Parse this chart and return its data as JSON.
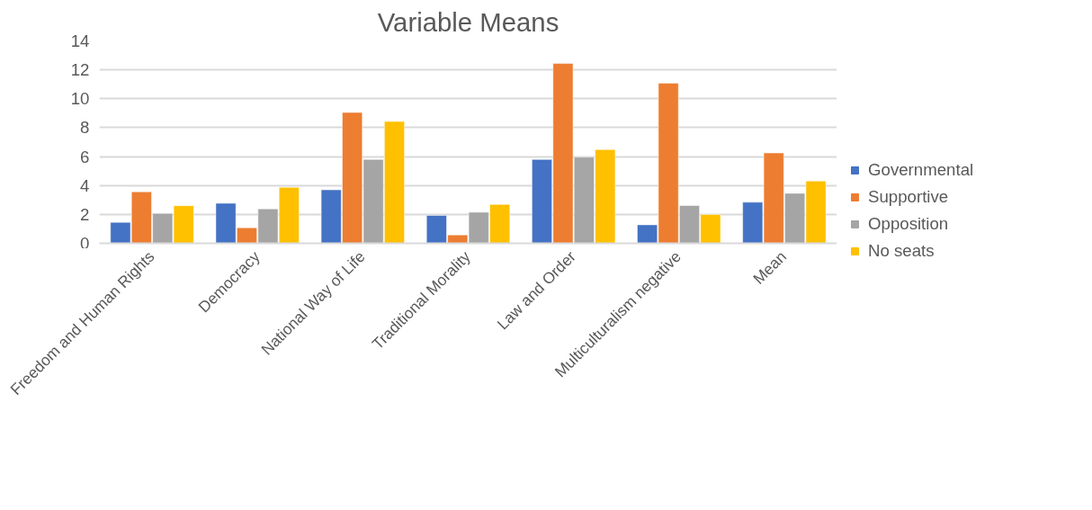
{
  "chart_data": {
    "type": "bar",
    "title": "Variable Means",
    "categories": [
      "Freedom and Human Rights",
      "Democracy",
      "National Way of Life",
      "Traditional Morality",
      "Law and Order",
      "Multiculturalism negative",
      "Mean"
    ],
    "series": [
      {
        "name": "Governmental",
        "color": "#4472c4",
        "values": [
          1.45,
          2.77,
          3.7,
          1.93,
          5.8,
          1.28,
          2.84
        ]
      },
      {
        "name": "Supportive",
        "color": "#ed7d31",
        "values": [
          3.56,
          1.08,
          9.05,
          0.58,
          12.44,
          11.08,
          6.25
        ]
      },
      {
        "name": "Opposition",
        "color": "#a5a5a5",
        "values": [
          2.07,
          2.38,
          5.8,
          2.15,
          5.96,
          2.61,
          3.46
        ]
      },
      {
        "name": "No seats",
        "color": "#ffc000",
        "values": [
          2.6,
          3.87,
          8.43,
          2.69,
          6.48,
          1.99,
          4.31
        ]
      }
    ],
    "ylim": [
      0,
      14
    ],
    "yticks": [
      0,
      2,
      4,
      6,
      8,
      10,
      12,
      14
    ],
    "grid": "y",
    "legend": "right"
  }
}
